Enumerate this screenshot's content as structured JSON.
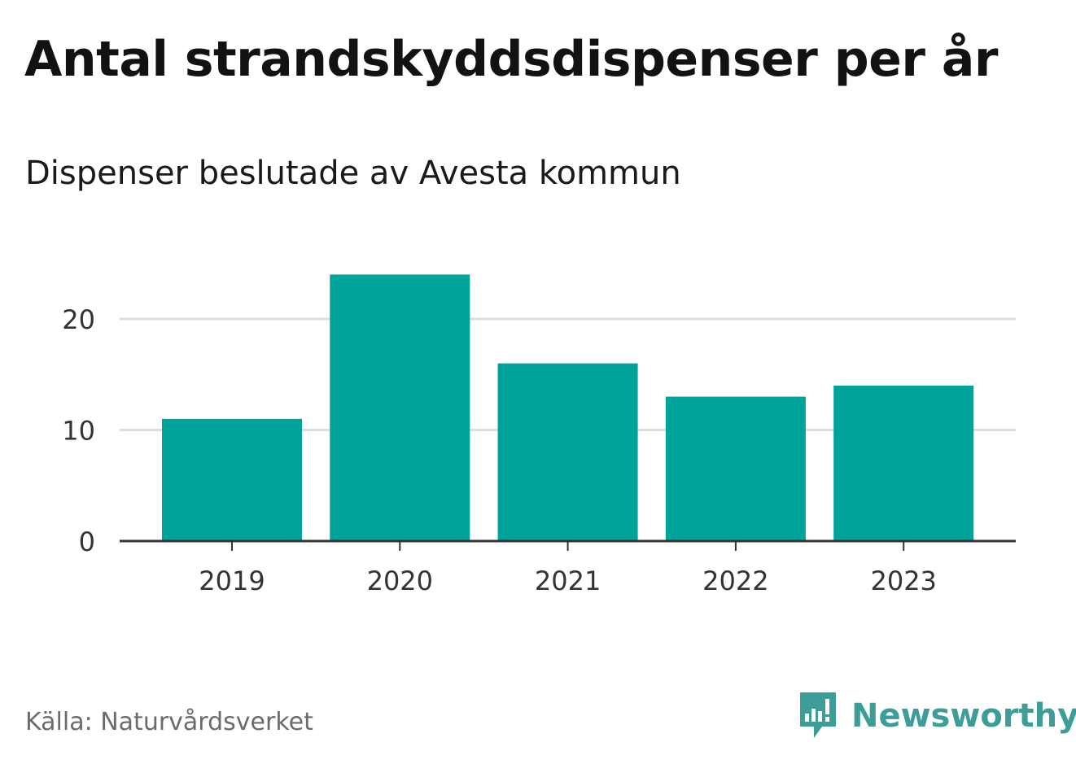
{
  "header": {
    "title": "Antal strandskyddsdispenser per år",
    "subtitle": "Dispenser beslutade av Avesta kommun"
  },
  "footer": {
    "source": "Källa: Naturvårdsverket",
    "brand": "Newsworthy",
    "brand_icon": "newsworthy-logo-icon"
  },
  "colors": {
    "bar": "#00a39a",
    "grid": "#dddddd",
    "axis": "#333333",
    "brand": "#3d9d98"
  },
  "chart_data": {
    "type": "bar",
    "title": "Antal strandskyddsdispenser per år",
    "subtitle": "Dispenser beslutade av Avesta kommun",
    "xlabel": "",
    "ylabel": "",
    "categories": [
      "2019",
      "2020",
      "2021",
      "2022",
      "2023"
    ],
    "values": [
      11,
      24,
      16,
      13,
      14
    ],
    "ylim": [
      0,
      24
    ],
    "yticks": [
      0,
      10,
      20
    ],
    "grid": true,
    "legend": "none"
  }
}
